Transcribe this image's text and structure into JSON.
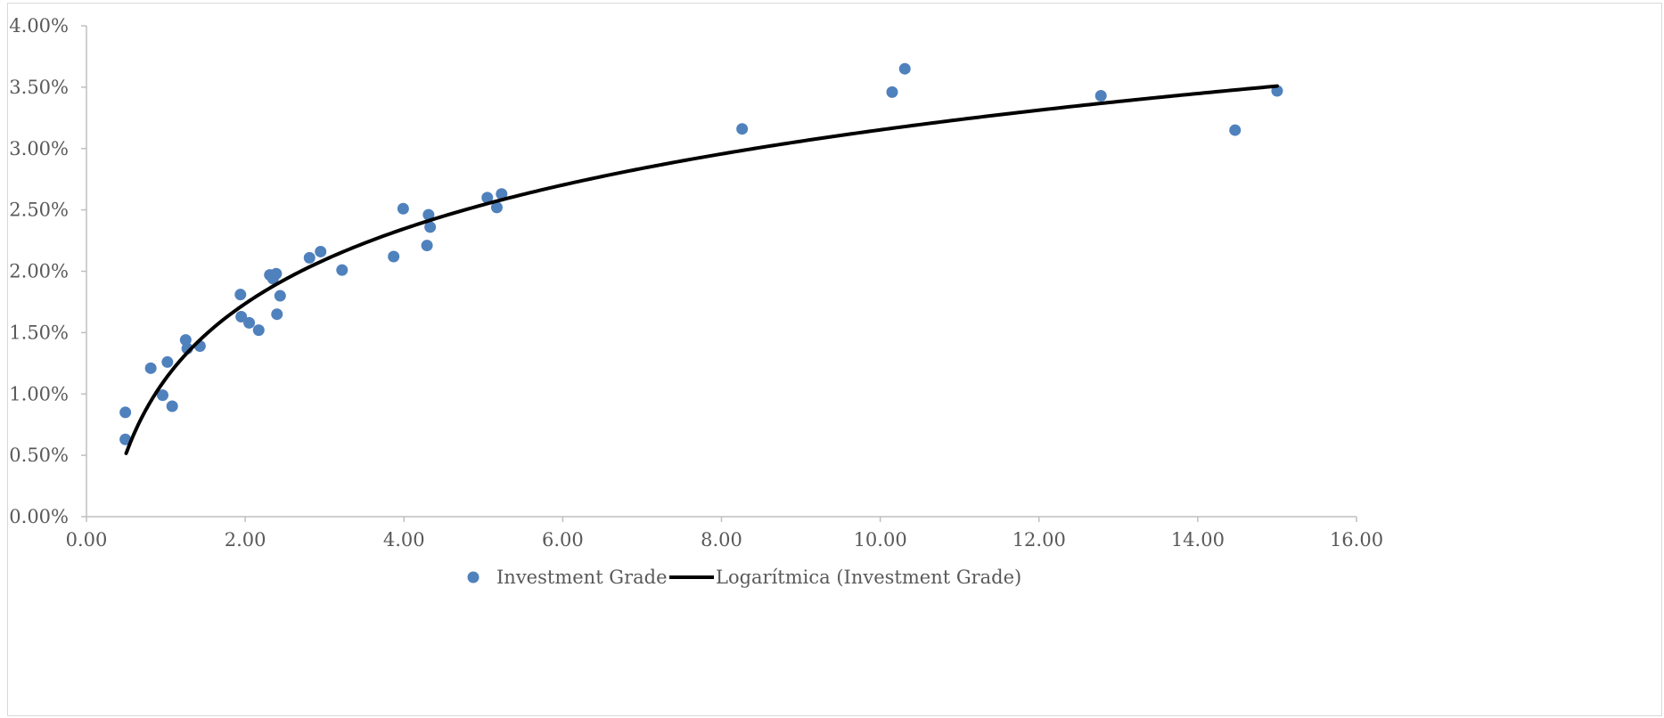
{
  "chart_data": {
    "type": "scatter",
    "colors": {
      "points": "#4f81bd",
      "trendline": "#000000",
      "axis": "#bfbfbf",
      "text": "#595959"
    },
    "xlim": [
      0,
      16
    ],
    "ylim": [
      0,
      0.04
    ],
    "x_ticks": [
      {
        "value": 0,
        "label": "0.00"
      },
      {
        "value": 2,
        "label": "2.00"
      },
      {
        "value": 4,
        "label": "4.00"
      },
      {
        "value": 6,
        "label": "6.00"
      },
      {
        "value": 8,
        "label": "8.00"
      },
      {
        "value": 10,
        "label": "10.00"
      },
      {
        "value": 12,
        "label": "12.00"
      },
      {
        "value": 14,
        "label": "14.00"
      },
      {
        "value": 16,
        "label": "16.00"
      }
    ],
    "y_ticks": [
      {
        "value": 0,
        "label": "0.00%"
      },
      {
        "value": 0.005,
        "label": "0.50%"
      },
      {
        "value": 0.01,
        "label": "1.00%"
      },
      {
        "value": 0.015,
        "label": "1.50%"
      },
      {
        "value": 0.02,
        "label": "2.00%"
      },
      {
        "value": 0.025,
        "label": "2.50%"
      },
      {
        "value": 0.03,
        "label": "3.00%"
      },
      {
        "value": 0.035,
        "label": "3.50%"
      },
      {
        "value": 0.04,
        "label": "4.00%"
      }
    ],
    "grid": false,
    "legend_position": "bottom",
    "series": [
      {
        "name": "Investment Grade",
        "kind": "scatter",
        "points": [
          [
            0.49,
            0.0085
          ],
          [
            0.49,
            0.0063
          ],
          [
            0.81,
            0.0121
          ],
          [
            0.96,
            0.0099
          ],
          [
            1.02,
            0.0126
          ],
          [
            1.08,
            0.009
          ],
          [
            1.25,
            0.0144
          ],
          [
            1.27,
            0.0137
          ],
          [
            1.43,
            0.0139
          ],
          [
            1.94,
            0.0181
          ],
          [
            1.95,
            0.0163
          ],
          [
            2.05,
            0.0158
          ],
          [
            2.17,
            0.0152
          ],
          [
            2.31,
            0.0197
          ],
          [
            2.35,
            0.0194
          ],
          [
            2.39,
            0.0198
          ],
          [
            2.4,
            0.0165
          ],
          [
            2.44,
            0.018
          ],
          [
            2.81,
            0.0211
          ],
          [
            2.95,
            0.0216
          ],
          [
            3.22,
            0.0201
          ],
          [
            3.87,
            0.0212
          ],
          [
            3.99,
            0.0251
          ],
          [
            4.29,
            0.0221
          ],
          [
            4.31,
            0.0246
          ],
          [
            4.33,
            0.0236
          ],
          [
            5.05,
            0.026
          ],
          [
            5.17,
            0.0252
          ],
          [
            5.23,
            0.0263
          ],
          [
            8.26,
            0.0316
          ],
          [
            10.15,
            0.0346
          ],
          [
            10.31,
            0.0365
          ],
          [
            12.78,
            0.0343
          ],
          [
            14.47,
            0.0315
          ],
          [
            15.0,
            0.0347
          ]
        ]
      },
      {
        "name": "Logarítmica (Investment Grade)",
        "kind": "trendline",
        "model": "logarithmic",
        "x_range": [
          0.5,
          15.0
        ],
        "coefficients": {
          "a": 0.0088,
          "b": 0.01126
        }
      }
    ]
  }
}
